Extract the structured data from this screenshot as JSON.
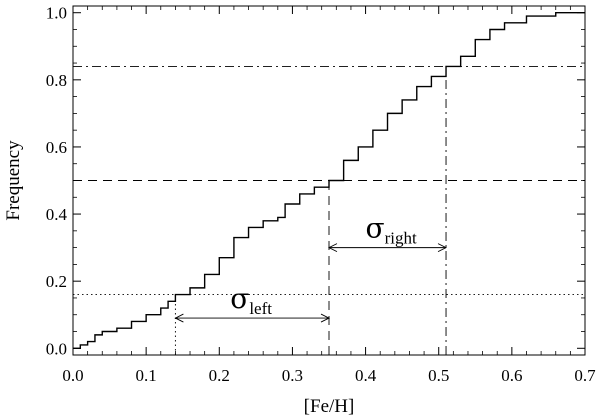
{
  "chart_data": {
    "type": "line",
    "title": "",
    "xlabel": "[Fe/H]",
    "ylabel": "Frequency",
    "xlim": [
      0.0,
      0.7
    ],
    "ylim": [
      -0.02,
      1.02
    ],
    "grid": false,
    "xticks": [
      "0.0",
      "0.1",
      "0.2",
      "0.3",
      "0.4",
      "0.5",
      "0.6",
      "0.7"
    ],
    "yticks": [
      "0.0",
      "0.2",
      "0.4",
      "0.6",
      "0.8",
      "1.0"
    ],
    "series": [
      {
        "name": "",
        "x": [
          0.0,
          0.01,
          0.02,
          0.03,
          0.04,
          0.06,
          0.08,
          0.1,
          0.12,
          0.13,
          0.14,
          0.16,
          0.18,
          0.2,
          0.22,
          0.24,
          0.26,
          0.28,
          0.29,
          0.31,
          0.33,
          0.35,
          0.37,
          0.39,
          0.41,
          0.43,
          0.45,
          0.47,
          0.49,
          0.51,
          0.53,
          0.55,
          0.57,
          0.59,
          0.62,
          0.66,
          0.7
        ],
        "y": [
          0.0,
          0.01,
          0.02,
          0.04,
          0.05,
          0.06,
          0.08,
          0.1,
          0.12,
          0.14,
          0.16,
          0.18,
          0.22,
          0.27,
          0.33,
          0.36,
          0.38,
          0.39,
          0.43,
          0.46,
          0.48,
          0.5,
          0.56,
          0.6,
          0.65,
          0.7,
          0.74,
          0.78,
          0.81,
          0.84,
          0.87,
          0.92,
          0.95,
          0.97,
          0.99,
          1.0,
          1.0
        ]
      }
    ],
    "reference_lines": [
      {
        "axis": "y",
        "value": 0.16,
        "style": "dotted"
      },
      {
        "axis": "y",
        "value": 0.5,
        "style": "dashed"
      },
      {
        "axis": "y",
        "value": 0.84,
        "style": "dashdot"
      },
      {
        "axis": "x",
        "value": 0.14,
        "y_to": 0.16,
        "style": "dotted"
      },
      {
        "axis": "x",
        "value": 0.35,
        "y_to": 0.5,
        "style": "dashed"
      },
      {
        "axis": "x",
        "value": 0.51,
        "y_to": 0.84,
        "style": "dashdot"
      }
    ],
    "annotations": [
      {
        "symbol": "σ",
        "subscript": "left",
        "x_from": 0.14,
        "x_to": 0.35,
        "y": 0.09
      },
      {
        "symbol": "σ",
        "subscript": "right",
        "x_from": 0.35,
        "x_to": 0.51,
        "y": 0.3
      }
    ]
  }
}
